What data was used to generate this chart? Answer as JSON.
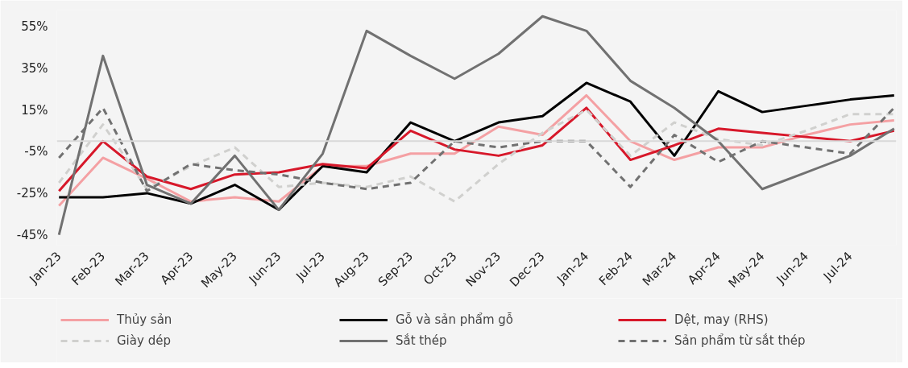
{
  "chart_data": {
    "type": "line",
    "categories": [
      "Jan-23",
      "Feb-23",
      "Mar-23",
      "Apr-23",
      "May-23",
      "Jun-23",
      "Jul-23",
      "Aug-23",
      "Sep-23",
      "Oct-23",
      "Nov-23",
      "Dec-23",
      "Jan-24",
      "Feb-24",
      "Mar-24",
      "Apr-24",
      "May-24",
      "Jun-24",
      "Jul-24",
      null
    ],
    "series": [
      {
        "name": "Thủy sản",
        "color": "#f4a0a3",
        "line_style": "solid",
        "values": [
          -31,
          -8,
          -18,
          -29,
          -27,
          -29,
          -12,
          -12,
          -6,
          -6,
          7,
          3,
          22,
          0,
          -9,
          -3,
          -3,
          3,
          8,
          10
        ]
      },
      {
        "name": "Gỗ và sản phẩm gỗ",
        "color": "#000000",
        "line_style": "solid",
        "values": [
          -27,
          -27,
          -25,
          -30,
          -21,
          -33,
          -12,
          -15,
          9,
          0,
          9,
          12,
          28,
          19,
          -7,
          24,
          14,
          17,
          20,
          22
        ]
      },
      {
        "name": "Dệt, may (RHS)",
        "color": "#d7182a",
        "line_style": "solid",
        "values": [
          -24,
          0,
          -17,
          -23,
          -16,
          -15,
          -11,
          -13,
          5,
          -4,
          -7,
          -2,
          16,
          -9,
          -2,
          6,
          4,
          2,
          0,
          5
        ]
      },
      {
        "name": "Giày dép",
        "color": "#d0d0ce",
        "line_style": "dashed",
        "values": [
          -20,
          8,
          -23,
          -12,
          -3,
          -22,
          -20,
          -22,
          -17,
          -29,
          -11,
          4,
          15,
          -7,
          9,
          1,
          -2,
          5,
          13,
          13
        ]
      },
      {
        "name": "Sắt thép",
        "color": "#717171",
        "line_style": "solid",
        "values": [
          -45,
          41,
          -21,
          -30,
          -7,
          -33,
          -6,
          53,
          41,
          30,
          42,
          60,
          53,
          29,
          16,
          0,
          -23,
          -15,
          -7,
          6
        ]
      },
      {
        "name": "Sản phẩm từ sắt thép",
        "color": "#717171",
        "line_style": "dashed",
        "values": [
          -8,
          16,
          -24,
          -11,
          -14,
          -16,
          -20,
          -23,
          -20,
          0,
          -3,
          0,
          0,
          -22,
          3,
          -10,
          0,
          -3,
          -6,
          16
        ]
      }
    ],
    "ylim": [
      -50,
      63
    ],
    "yticks": [
      {
        "value": -45,
        "label": "-45%"
      },
      {
        "value": -25,
        "label": "-25%"
      },
      {
        "value": -5,
        "label": "-5%"
      },
      {
        "value": 15,
        "label": "15%"
      },
      {
        "value": 35,
        "label": "35%"
      },
      {
        "value": 55,
        "label": "55%"
      }
    ],
    "ref_lines": [
      {
        "axis": "y",
        "value": 0,
        "color": "#d9d9d9"
      }
    ],
    "grid": false,
    "legend": "bottom"
  }
}
